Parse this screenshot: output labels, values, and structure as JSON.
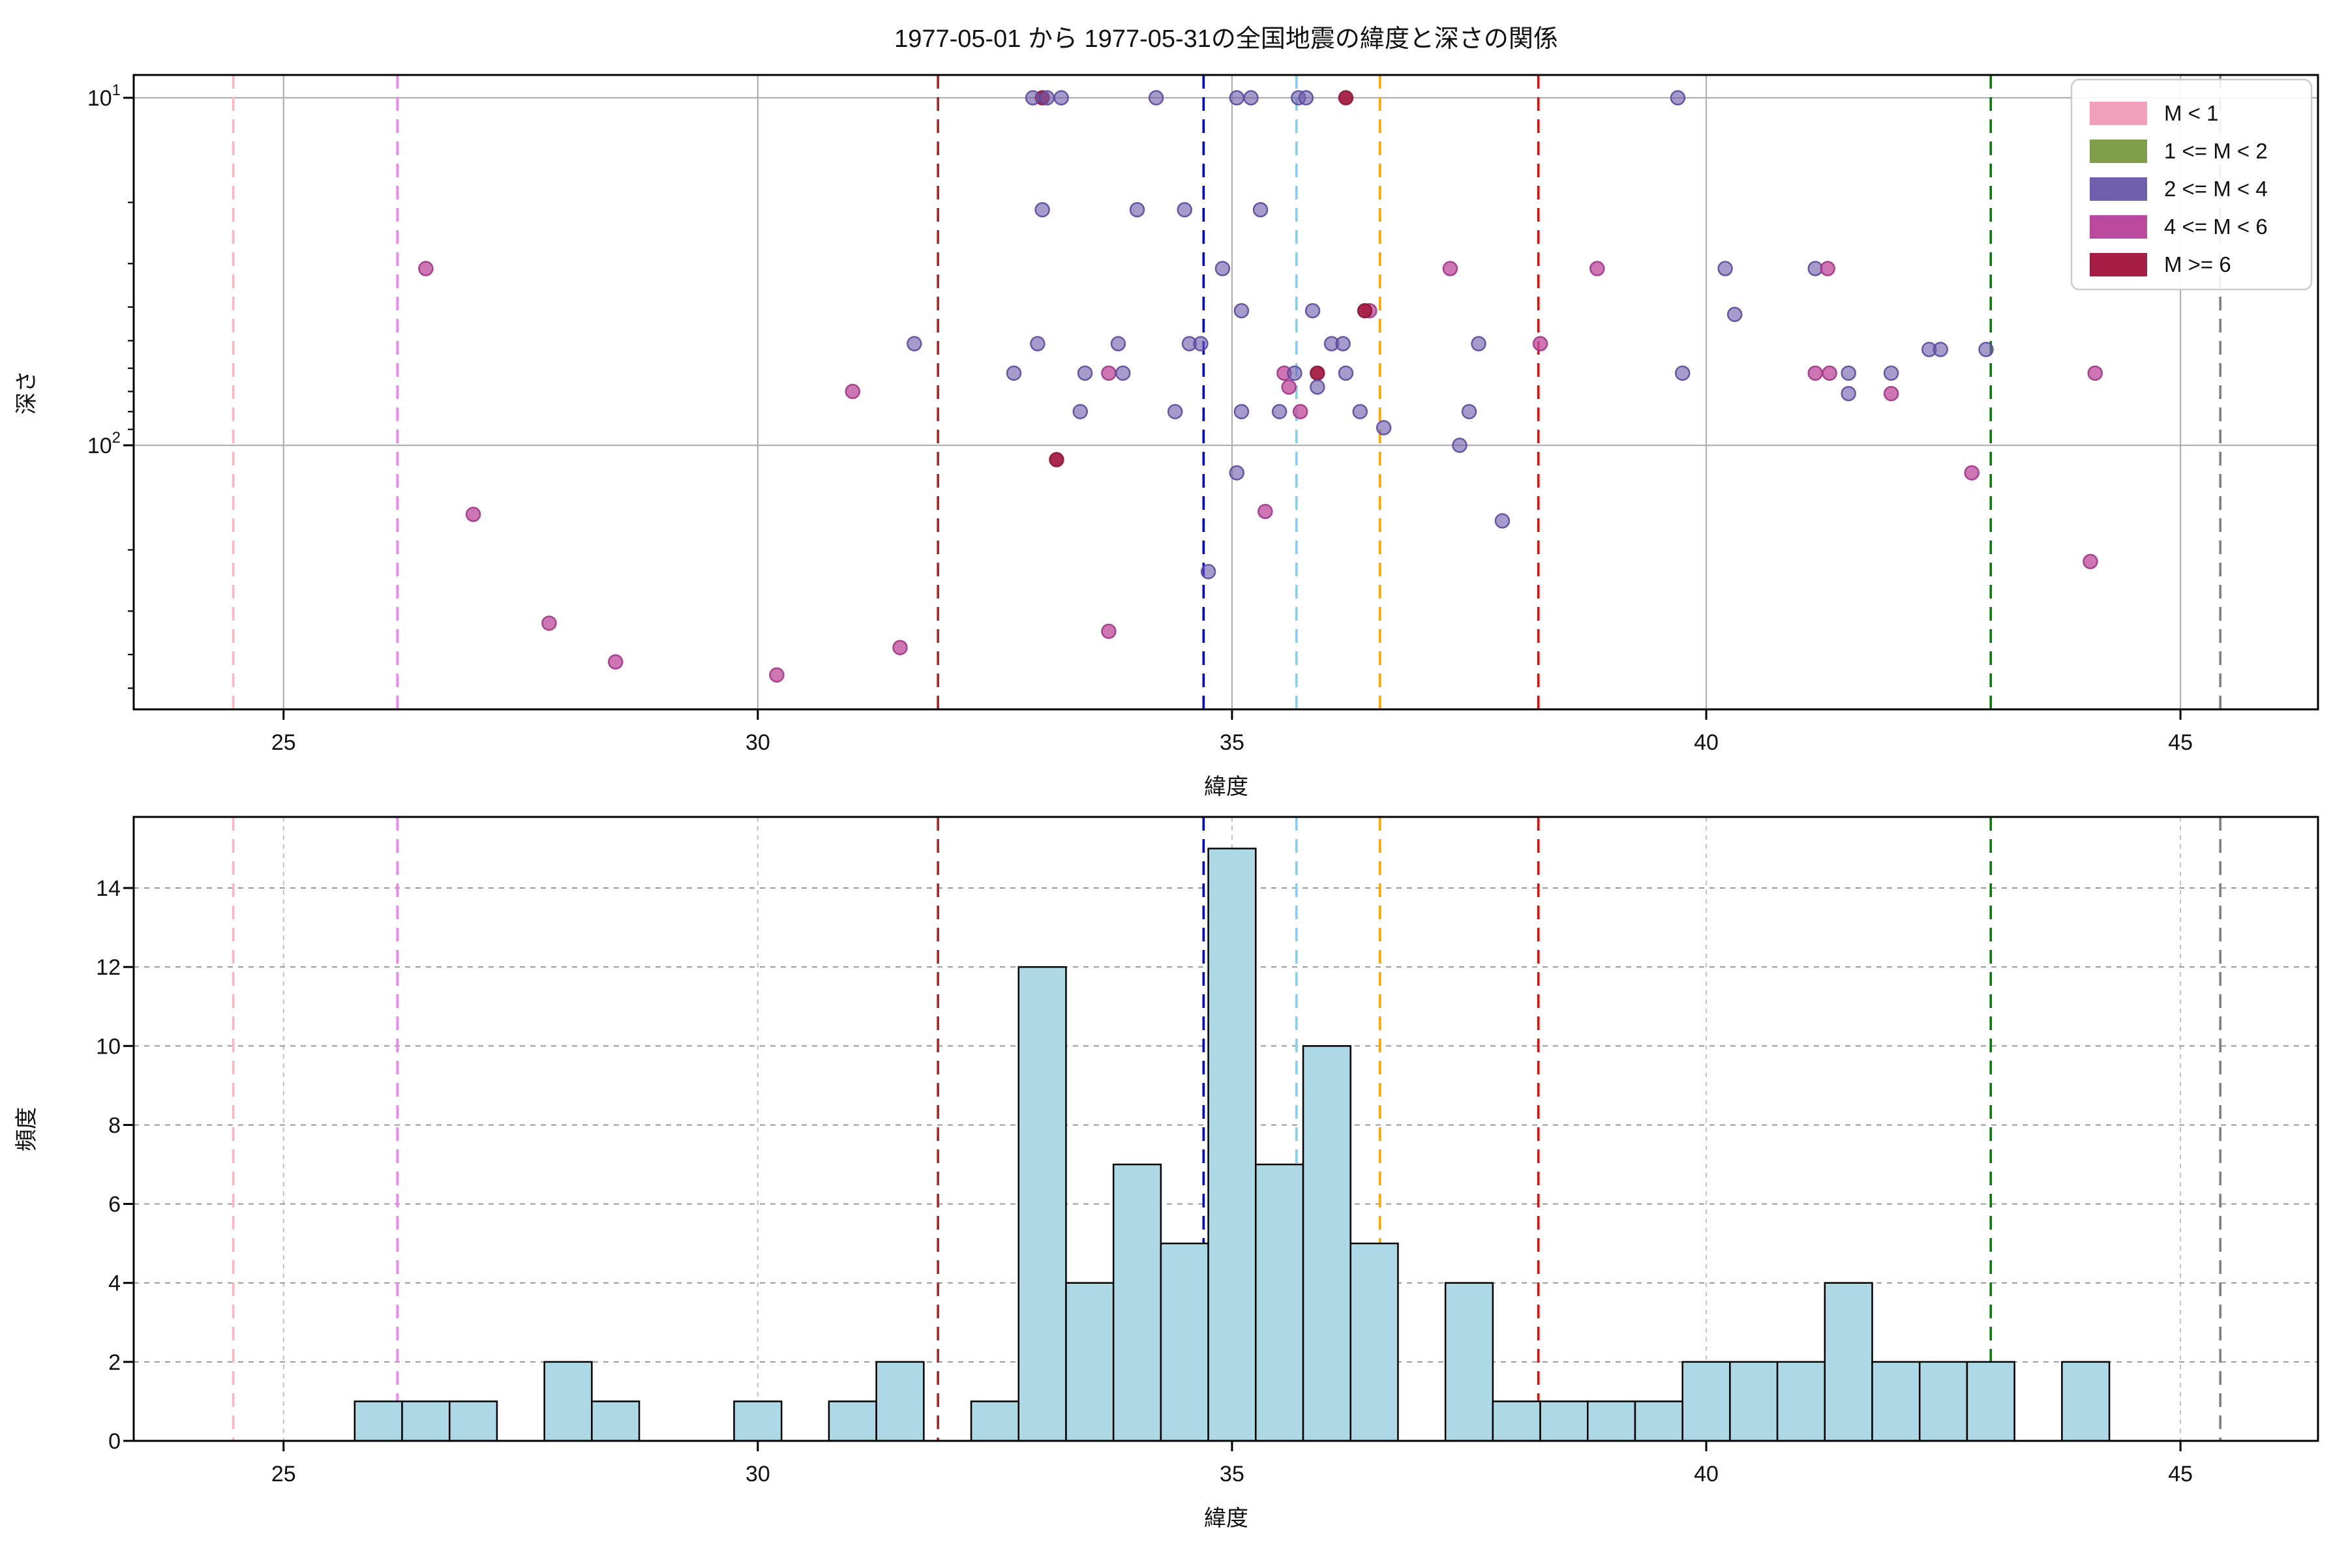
{
  "title": "1977-05-01 から 1977-05-31の全国地震の緯度と深さの関係",
  "legend": {
    "items": [
      {
        "label": "M < 1",
        "color": "#f0a0ba"
      },
      {
        "label": "1 <= M < 2",
        "color": "#7f9f4b"
      },
      {
        "label": "2 <= M < 4",
        "color": "#6f5fad"
      },
      {
        "label": "4 <= M < 6",
        "color": "#bb4a9e"
      },
      {
        "label": "M >= 6",
        "color": "#a51e45"
      }
    ]
  },
  "chart_data": [
    {
      "type": "scatter",
      "title": "1977-05-01 から 1977-05-31の全国地震の緯度と深さの関係",
      "xlabel": "緯度",
      "ylabel": "深さ",
      "xlim": [
        23.42,
        46.45
      ],
      "yscale": "log",
      "y_inverted": true,
      "ylim": [
        8.6,
        575
      ],
      "xticks": [
        25,
        30,
        35,
        40,
        45
      ],
      "yticks": [
        {
          "value": 10,
          "label": "10",
          "exp": "1"
        },
        {
          "value": 100,
          "label": "10",
          "exp": "2"
        }
      ],
      "yminorticks": [
        20,
        30,
        40,
        50,
        60,
        70,
        80,
        90,
        200,
        300,
        400,
        500
      ],
      "grid": "solid gray, x at 25..45, y at 10 and 100",
      "legend_position": "upper right",
      "marker": {
        "radius": 10.5,
        "fill_opacity": 0.68,
        "stroke_width": 2.5
      },
      "classes": {
        "M<1": {
          "fill": "#f0a0ba",
          "stroke": "#d9789c",
          "opacity": 0.7
        },
        "1<=M<2": {
          "fill": "#7f9f4b",
          "stroke": "#66863a",
          "opacity": 0.7
        },
        "2<=M<4": {
          "fill": "#6f5fad",
          "stroke": "#5a4a9e",
          "opacity": 0.62
        },
        "4<=M<6": {
          "fill": "#c0509f",
          "stroke": "#a23587",
          "opacity": 0.78
        },
        "M>=6": {
          "fill": "#a51e45",
          "stroke": "#8c1638",
          "opacity": 0.95
        }
      },
      "points": [
        {
          "lat": 26.5,
          "depth": 31,
          "class": "4<=M<6"
        },
        {
          "lat": 27.0,
          "depth": 158,
          "class": "4<=M<6"
        },
        {
          "lat": 27.8,
          "depth": 325,
          "class": "4<=M<6"
        },
        {
          "lat": 28.5,
          "depth": 420,
          "class": "4<=M<6"
        },
        {
          "lat": 30.2,
          "depth": 458,
          "class": "4<=M<6"
        },
        {
          "lat": 31.0,
          "depth": 70,
          "class": "4<=M<6"
        },
        {
          "lat": 31.5,
          "depth": 382,
          "class": "4<=M<6"
        },
        {
          "lat": 31.65,
          "depth": 51,
          "class": "2<=M<4"
        },
        {
          "lat": 33.0,
          "depth": 10,
          "class": "M>=6"
        },
        {
          "lat": 32.9,
          "depth": 10,
          "class": "2<=M<4"
        },
        {
          "lat": 33.05,
          "depth": 10,
          "class": "2<=M<4"
        },
        {
          "lat": 33.2,
          "depth": 10,
          "class": "2<=M<4"
        },
        {
          "lat": 34.2,
          "depth": 10,
          "class": "2<=M<4"
        },
        {
          "lat": 35.05,
          "depth": 10,
          "class": "2<=M<4"
        },
        {
          "lat": 35.2,
          "depth": 10,
          "class": "2<=M<4"
        },
        {
          "lat": 35.7,
          "depth": 10,
          "class": "2<=M<4"
        },
        {
          "lat": 35.78,
          "depth": 10,
          "class": "2<=M<4"
        },
        {
          "lat": 36.2,
          "depth": 10,
          "class": "M>=6"
        },
        {
          "lat": 39.7,
          "depth": 10,
          "class": "2<=M<4"
        },
        {
          "lat": 33.0,
          "depth": 21,
          "class": "2<=M<4"
        },
        {
          "lat": 34.0,
          "depth": 21,
          "class": "2<=M<4"
        },
        {
          "lat": 34.5,
          "depth": 21,
          "class": "2<=M<4"
        },
        {
          "lat": 35.3,
          "depth": 21,
          "class": "2<=M<4"
        },
        {
          "lat": 34.9,
          "depth": 31,
          "class": "2<=M<4"
        },
        {
          "lat": 37.3,
          "depth": 31,
          "class": "4<=M<6"
        },
        {
          "lat": 38.85,
          "depth": 31,
          "class": "4<=M<6"
        },
        {
          "lat": 40.2,
          "depth": 31,
          "class": "2<=M<4"
        },
        {
          "lat": 41.15,
          "depth": 31,
          "class": "2<=M<4"
        },
        {
          "lat": 41.28,
          "depth": 31,
          "class": "4<=M<6"
        },
        {
          "lat": 35.1,
          "depth": 41,
          "class": "2<=M<4"
        },
        {
          "lat": 35.85,
          "depth": 41,
          "class": "2<=M<4"
        },
        {
          "lat": 36.45,
          "depth": 41,
          "class": "4<=M<6"
        },
        {
          "lat": 36.4,
          "depth": 41,
          "class": "M>=6"
        },
        {
          "lat": 40.3,
          "depth": 42,
          "class": "2<=M<4"
        },
        {
          "lat": 32.95,
          "depth": 51,
          "class": "2<=M<4"
        },
        {
          "lat": 33.8,
          "depth": 51,
          "class": "2<=M<4"
        },
        {
          "lat": 34.55,
          "depth": 51,
          "class": "2<=M<4"
        },
        {
          "lat": 34.67,
          "depth": 51,
          "class": "2<=M<4"
        },
        {
          "lat": 36.05,
          "depth": 51,
          "class": "2<=M<4"
        },
        {
          "lat": 36.17,
          "depth": 51,
          "class": "2<=M<4"
        },
        {
          "lat": 37.6,
          "depth": 51,
          "class": "2<=M<4"
        },
        {
          "lat": 38.25,
          "depth": 51,
          "class": "4<=M<6"
        },
        {
          "lat": 42.35,
          "depth": 53,
          "class": "2<=M<4"
        },
        {
          "lat": 42.47,
          "depth": 53,
          "class": "2<=M<4"
        },
        {
          "lat": 42.95,
          "depth": 53,
          "class": "2<=M<4"
        },
        {
          "lat": 32.7,
          "depth": 62,
          "class": "2<=M<4"
        },
        {
          "lat": 33.45,
          "depth": 62,
          "class": "2<=M<4"
        },
        {
          "lat": 33.7,
          "depth": 62,
          "class": "4<=M<6"
        },
        {
          "lat": 33.85,
          "depth": 62,
          "class": "2<=M<4"
        },
        {
          "lat": 35.55,
          "depth": 62,
          "class": "4<=M<6"
        },
        {
          "lat": 35.66,
          "depth": 62,
          "class": "2<=M<4"
        },
        {
          "lat": 35.9,
          "depth": 62,
          "class": "M>=6"
        },
        {
          "lat": 36.2,
          "depth": 62,
          "class": "2<=M<4"
        },
        {
          "lat": 39.75,
          "depth": 62,
          "class": "2<=M<4"
        },
        {
          "lat": 41.15,
          "depth": 62,
          "class": "4<=M<6"
        },
        {
          "lat": 41.3,
          "depth": 62,
          "class": "4<=M<6"
        },
        {
          "lat": 41.5,
          "depth": 62,
          "class": "2<=M<4"
        },
        {
          "lat": 41.95,
          "depth": 62,
          "class": "2<=M<4"
        },
        {
          "lat": 44.1,
          "depth": 62,
          "class": "4<=M<6"
        },
        {
          "lat": 35.6,
          "depth": 68,
          "class": "4<=M<6"
        },
        {
          "lat": 35.9,
          "depth": 68,
          "class": "2<=M<4"
        },
        {
          "lat": 41.5,
          "depth": 71,
          "class": "2<=M<4"
        },
        {
          "lat": 41.95,
          "depth": 71,
          "class": "4<=M<6"
        },
        {
          "lat": 33.4,
          "depth": 80,
          "class": "2<=M<4"
        },
        {
          "lat": 34.4,
          "depth": 80,
          "class": "2<=M<4"
        },
        {
          "lat": 35.1,
          "depth": 80,
          "class": "2<=M<4"
        },
        {
          "lat": 35.5,
          "depth": 80,
          "class": "2<=M<4"
        },
        {
          "lat": 35.72,
          "depth": 80,
          "class": "4<=M<6"
        },
        {
          "lat": 36.35,
          "depth": 80,
          "class": "2<=M<4"
        },
        {
          "lat": 37.5,
          "depth": 80,
          "class": "2<=M<4"
        },
        {
          "lat": 36.6,
          "depth": 89,
          "class": "2<=M<4"
        },
        {
          "lat": 37.4,
          "depth": 100,
          "class": "2<=M<4"
        },
        {
          "lat": 33.15,
          "depth": 110,
          "class": "M>=6"
        },
        {
          "lat": 35.05,
          "depth": 120,
          "class": "2<=M<4"
        },
        {
          "lat": 42.8,
          "depth": 120,
          "class": "4<=M<6"
        },
        {
          "lat": 35.35,
          "depth": 155,
          "class": "4<=M<6"
        },
        {
          "lat": 37.85,
          "depth": 165,
          "class": "2<=M<4"
        },
        {
          "lat": 44.05,
          "depth": 216,
          "class": "4<=M<6"
        },
        {
          "lat": 34.75,
          "depth": 231,
          "class": "2<=M<4"
        },
        {
          "lat": 33.7,
          "depth": 343,
          "class": "4<=M<6"
        }
      ],
      "vlines": [
        {
          "lat": 24.47,
          "color": "#ffb6c1"
        },
        {
          "lat": 26.2,
          "color": "#ee82ee"
        },
        {
          "lat": 31.9,
          "color": "#b22222"
        },
        {
          "lat": 34.7,
          "color": "#0000cd"
        },
        {
          "lat": 35.68,
          "color": "#87ceeb"
        },
        {
          "lat": 36.56,
          "color": "#ffa500"
        },
        {
          "lat": 38.23,
          "color": "#ff0000"
        },
        {
          "lat": 43.0,
          "color": "#008000"
        },
        {
          "lat": 45.42,
          "color": "#808080"
        }
      ]
    },
    {
      "type": "bar",
      "xlabel": "緯度",
      "ylabel": "頻度",
      "xlim": [
        23.42,
        46.45
      ],
      "ylim": [
        0,
        15.8
      ],
      "xticks": [
        25,
        30,
        35,
        40,
        45
      ],
      "yticks": [
        0,
        2,
        4,
        6,
        8,
        10,
        12,
        14
      ],
      "bin_start": 25.75,
      "bin_width": 0.5,
      "counts": [
        1,
        1,
        1,
        0,
        2,
        1,
        0,
        0,
        1,
        0,
        1,
        2,
        0,
        1,
        12,
        4,
        7,
        5,
        15,
        7,
        10,
        5,
        0,
        4,
        1,
        1,
        1,
        1,
        2,
        2,
        2,
        4,
        2,
        2,
        2,
        0,
        2
      ],
      "bar_fill": "#add8e6",
      "bar_edge": "#000000",
      "grid": "dashed gray",
      "vlines": [
        {
          "lat": 24.47,
          "color": "#ffb6c1"
        },
        {
          "lat": 26.2,
          "color": "#ee82ee"
        },
        {
          "lat": 31.9,
          "color": "#b22222"
        },
        {
          "lat": 34.7,
          "color": "#0000cd"
        },
        {
          "lat": 35.68,
          "color": "#87ceeb"
        },
        {
          "lat": 36.56,
          "color": "#ffa500"
        },
        {
          "lat": 38.23,
          "color": "#ff0000"
        },
        {
          "lat": 43.0,
          "color": "#008000"
        },
        {
          "lat": 45.42,
          "color": "#808080"
        }
      ]
    }
  ]
}
